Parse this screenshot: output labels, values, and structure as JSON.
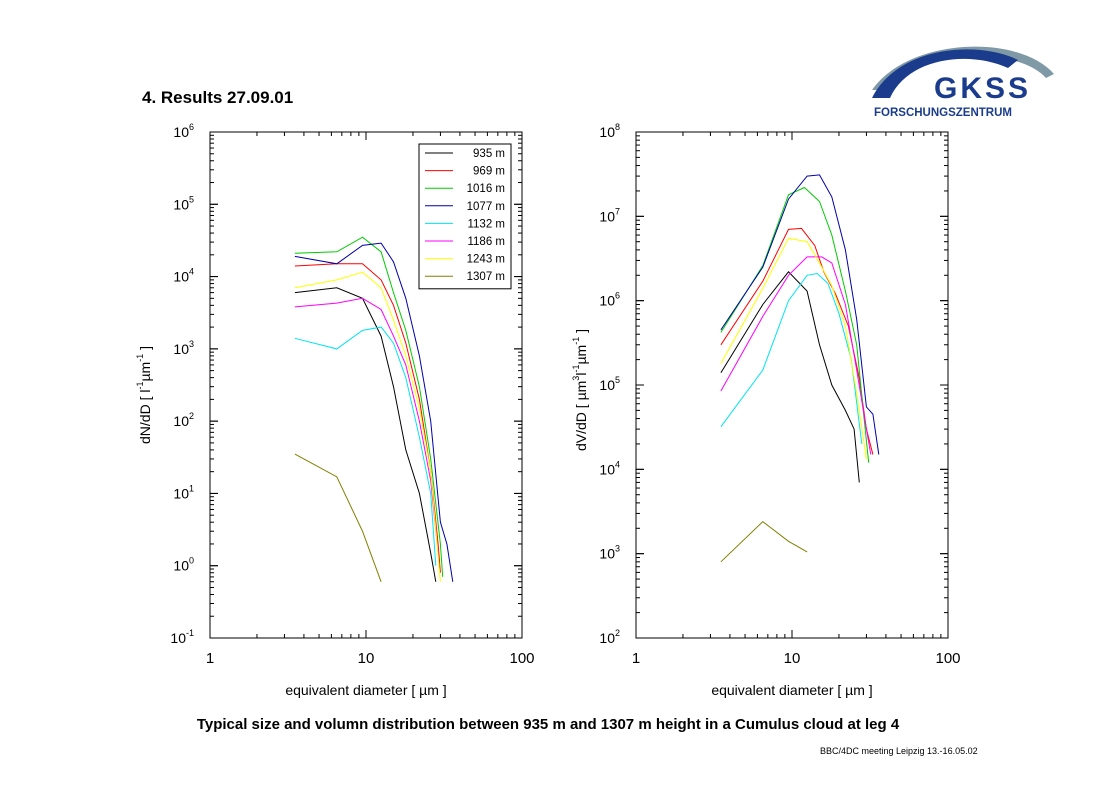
{
  "slide": {
    "title": "4. Results  27.09.01",
    "caption": "Typical size and volumn distribution between 935 m and 1307 m height in a Cumulus cloud at leg 4",
    "footer": "BBC/4DC meeting Leipzig 13.-16.05.02"
  },
  "logo": {
    "name": "GKSS",
    "subtitle": "FORSCHUNGSZENTRUM",
    "colors": {
      "arc_light": "#7f9aa6",
      "arc_dark": "#1b3c8c",
      "text": "#1b3c8c"
    }
  },
  "series_colors": {
    "935 m": "#000000",
    "969 m": "#ff0000",
    "1016 m": "#00cc00",
    "1077 m": "#0000aa",
    "1132 m": "#00e5ee",
    "1186 m": "#ff00ff",
    "1243 m": "#ffff00",
    "1307 m": "#808000"
  },
  "chart_data": [
    {
      "type": "line",
      "xscale": "log",
      "yscale": "log",
      "xlim": [
        1,
        100
      ],
      "ylim": [
        0.1,
        1000000
      ],
      "x_ticks": [
        "1",
        "10",
        "100"
      ],
      "y_ticks": [
        {
          "base": "10",
          "exp": "-1"
        },
        {
          "base": "10",
          "exp": "0"
        },
        {
          "base": "10",
          "exp": "1"
        },
        {
          "base": "10",
          "exp": "2"
        },
        {
          "base": "10",
          "exp": "3"
        },
        {
          "base": "10",
          "exp": "4"
        },
        {
          "base": "10",
          "exp": "5"
        },
        {
          "base": "10",
          "exp": "6"
        }
      ],
      "xlabel": "equivalent diameter [ µm ]",
      "ylabel": {
        "pre": "dN/dD [ l",
        "sup1": "-1",
        "mid": "µm",
        "sup2": "-1",
        "post": " ]"
      },
      "legend_position": "top-right",
      "series": [
        {
          "name": "935 m",
          "x": [
            3.5,
            6.5,
            9.5,
            12.5,
            15,
            18,
            22,
            26,
            28
          ],
          "y": [
            6000,
            7000,
            5000,
            1500,
            300,
            40,
            10,
            1.5,
            0.6
          ]
        },
        {
          "name": "969 m",
          "x": [
            3.5,
            6.5,
            9.5,
            12.5,
            15,
            18,
            22,
            26,
            29,
            30
          ],
          "y": [
            14000,
            15000,
            15000,
            9000,
            4000,
            1200,
            200,
            20,
            2,
            0.8
          ]
        },
        {
          "name": "1016 m",
          "x": [
            3.5,
            6.5,
            9.5,
            12.5,
            15,
            18,
            22,
            26,
            30,
            31
          ],
          "y": [
            21000,
            22000,
            35000,
            22000,
            6000,
            1800,
            300,
            30,
            2,
            0.7
          ]
        },
        {
          "name": "1077 m",
          "x": [
            3.5,
            6.5,
            9.5,
            12.5,
            15,
            18,
            22,
            26,
            30,
            33,
            36
          ],
          "y": [
            19000,
            15000,
            27000,
            29000,
            16000,
            5000,
            800,
            100,
            4,
            2,
            0.6
          ]
        },
        {
          "name": "1132 m",
          "x": [
            3.5,
            6.5,
            9.5,
            12.5,
            15,
            18,
            22,
            26,
            28
          ],
          "y": [
            1400,
            1000,
            1800,
            2000,
            1200,
            400,
            60,
            10,
            1
          ]
        },
        {
          "name": "1186 m",
          "x": [
            3.5,
            6.5,
            9.5,
            12.5,
            15,
            18,
            22,
            26,
            29
          ],
          "y": [
            3800,
            4300,
            5000,
            3500,
            1500,
            600,
            100,
            15,
            1.5
          ]
        },
        {
          "name": "1243 m",
          "x": [
            3.5,
            6.5,
            9.5,
            12.5,
            15,
            18,
            22,
            26,
            30
          ],
          "y": [
            7000,
            9000,
            11500,
            7000,
            2500,
            800,
            150,
            20,
            0.6
          ]
        },
        {
          "name": "1307 m",
          "x": [
            3.5,
            6.5,
            9.5,
            12.5
          ],
          "y": [
            35,
            17,
            3,
            0.6
          ]
        }
      ]
    },
    {
      "type": "line",
      "xscale": "log",
      "yscale": "log",
      "xlim": [
        1,
        100
      ],
      "ylim": [
        100,
        100000000
      ],
      "x_ticks": [
        "1",
        "10",
        "100"
      ],
      "y_ticks": [
        {
          "base": "10",
          "exp": "2"
        },
        {
          "base": "10",
          "exp": "3"
        },
        {
          "base": "10",
          "exp": "4"
        },
        {
          "base": "10",
          "exp": "5"
        },
        {
          "base": "10",
          "exp": "6"
        },
        {
          "base": "10",
          "exp": "7"
        },
        {
          "base": "10",
          "exp": "8"
        }
      ],
      "xlabel": "equivalent diameter [ µm ]",
      "ylabel": {
        "pre": "dV/dD [ µm",
        "sup1": "3",
        "mid": "l",
        "sup2": "-1",
        "mid2": "µm",
        "sup3": "-1",
        "post": " ]"
      },
      "series": [
        {
          "name": "935 m",
          "x": [
            3.5,
            6.5,
            9.5,
            12.5,
            15,
            18,
            22,
            25,
            27
          ],
          "y": [
            140000,
            900000,
            2200000,
            1300000,
            300000,
            100000,
            50000,
            30000,
            7000
          ]
        },
        {
          "name": "969 m",
          "x": [
            3.5,
            6.5,
            9.5,
            11.5,
            14,
            16,
            19,
            23,
            27,
            30,
            33
          ],
          "y": [
            300000,
            1700000,
            7000000,
            7200000,
            4500000,
            2200000,
            1200000,
            500000,
            120000,
            30000,
            15000
          ]
        },
        {
          "name": "1016 m",
          "x": [
            3.5,
            6.5,
            9.5,
            12,
            15,
            18,
            22,
            26,
            29,
            31
          ],
          "y": [
            420000,
            2600000,
            18000000,
            22000000,
            15000000,
            6000000,
            1300000,
            300000,
            40000,
            12000
          ]
        },
        {
          "name": "1077 m",
          "x": [
            3.5,
            6.5,
            9.5,
            12.5,
            15,
            18,
            22,
            26,
            30,
            33,
            36
          ],
          "y": [
            450000,
            2500000,
            16000000,
            30000000,
            31000000,
            17000000,
            4000000,
            600000,
            55000,
            45000,
            15000
          ]
        },
        {
          "name": "1132 m",
          "x": [
            3.5,
            6.5,
            9.5,
            12.5,
            14.5,
            17,
            20,
            24,
            28
          ],
          "y": [
            32000,
            150000,
            1000000,
            2000000,
            2100000,
            1600000,
            700000,
            200000,
            20000
          ]
        },
        {
          "name": "1186 m",
          "x": [
            3.5,
            6.5,
            9.5,
            12.5,
            15.5,
            18,
            22,
            26,
            30,
            32
          ],
          "y": [
            85000,
            650000,
            2000000,
            3300000,
            3300000,
            2800000,
            900000,
            150000,
            30000,
            15000
          ]
        },
        {
          "name": "1243 m",
          "x": [
            3.5,
            6.5,
            9.5,
            12.5,
            15,
            18,
            22,
            26,
            30
          ],
          "y": [
            180000,
            1400000,
            5500000,
            5000000,
            2800000,
            1500000,
            500000,
            80000,
            13000
          ]
        },
        {
          "name": "1307 m",
          "x": [
            3.5,
            6.5,
            9.5,
            12.5
          ],
          "y": [
            800,
            2400,
            1400,
            1050
          ]
        }
      ]
    }
  ]
}
